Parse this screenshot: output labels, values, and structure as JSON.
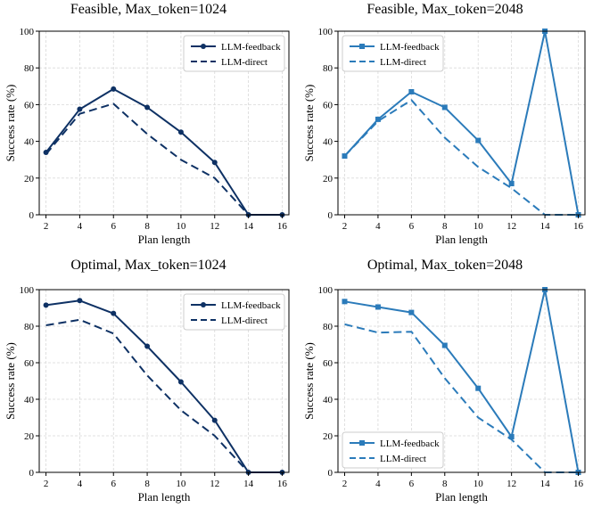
{
  "chart_data": [
    {
      "type": "line",
      "title": "Feasible, Max_token=1024",
      "xlabel": "Plan length",
      "ylabel": "Success rate (%)",
      "x": [
        2,
        4,
        6,
        8,
        10,
        12,
        14,
        16
      ],
      "xlim": [
        1.6,
        16.4
      ],
      "ylim": [
        0,
        100
      ],
      "yticks": [
        0,
        20,
        40,
        60,
        80,
        100
      ],
      "grid": true,
      "legend_position": "top-right",
      "color": "#0e3164",
      "series": [
        {
          "name": "LLM-feedback",
          "values": [
            34,
            57.5,
            68.5,
            58.5,
            45,
            28.5,
            0,
            0
          ],
          "style": "solid",
          "marker": "circle"
        },
        {
          "name": "LLM-direct",
          "values": [
            33,
            55,
            60.5,
            44,
            30,
            20,
            0,
            null
          ],
          "style": "dashed",
          "marker": "none"
        }
      ]
    },
    {
      "type": "line",
      "title": "Feasible, Max_token=2048",
      "xlabel": "Plan length",
      "ylabel": "Success rate (%)",
      "x": [
        2,
        4,
        6,
        8,
        10,
        12,
        14,
        16
      ],
      "xlim": [
        1.6,
        16.4
      ],
      "ylim": [
        0,
        100
      ],
      "yticks": [
        0,
        20,
        40,
        60,
        80,
        100
      ],
      "grid": true,
      "legend_position": "top-left",
      "color": "#2b7bba",
      "series": [
        {
          "name": "LLM-feedback",
          "values": [
            32,
            52,
            67,
            58.5,
            40.5,
            17,
            100,
            0
          ],
          "style": "solid",
          "marker": "square"
        },
        {
          "name": "LLM-direct",
          "values": [
            32,
            51,
            62.5,
            42,
            26,
            14.5,
            0,
            0
          ],
          "style": "dashed",
          "marker": "none"
        }
      ]
    },
    {
      "type": "line",
      "title": "Optimal, Max_token=1024",
      "xlabel": "Plan length",
      "ylabel": "Success rate (%)",
      "x": [
        2,
        4,
        6,
        8,
        10,
        12,
        14,
        16
      ],
      "xlim": [
        1.6,
        16.4
      ],
      "ylim": [
        0,
        100
      ],
      "yticks": [
        0,
        20,
        40,
        60,
        80,
        100
      ],
      "grid": true,
      "legend_position": "top-right",
      "color": "#0e3164",
      "series": [
        {
          "name": "LLM-feedback",
          "values": [
            91.5,
            94,
            87,
            69,
            49.5,
            28.5,
            0,
            0
          ],
          "style": "solid",
          "marker": "circle"
        },
        {
          "name": "LLM-direct",
          "values": [
            80.5,
            83.5,
            76,
            53,
            34,
            20,
            0,
            null
          ],
          "style": "dashed",
          "marker": "none"
        }
      ]
    },
    {
      "type": "line",
      "title": "Optimal, Max_token=2048",
      "xlabel": "Plan length",
      "ylabel": "Success rate (%)",
      "x": [
        2,
        4,
        6,
        8,
        10,
        12,
        14,
        16
      ],
      "xlim": [
        1.6,
        16.4
      ],
      "ylim": [
        0,
        100
      ],
      "yticks": [
        0,
        20,
        40,
        60,
        80,
        100
      ],
      "grid": true,
      "legend_position": "bottom-left",
      "color": "#2b7bba",
      "series": [
        {
          "name": "LLM-feedback",
          "values": [
            93.5,
            90.5,
            87.5,
            69.5,
            46,
            19.5,
            100,
            0
          ],
          "style": "solid",
          "marker": "square"
        },
        {
          "name": "LLM-direct",
          "values": [
            81,
            76.5,
            77,
            51.5,
            30,
            18,
            0,
            0
          ],
          "style": "dashed",
          "marker": "none"
        }
      ]
    }
  ]
}
